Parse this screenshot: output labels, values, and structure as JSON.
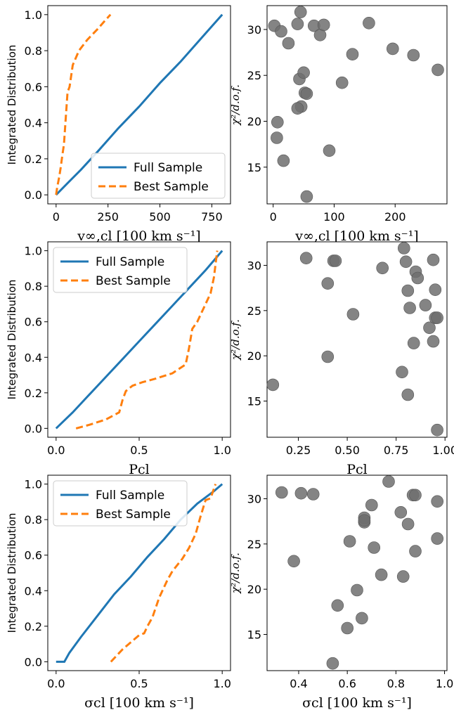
{
  "colors": {
    "full": "#1f77b4",
    "best": "#ff7f0e",
    "scatter": "#6e6e6e"
  },
  "chart_data": [
    {
      "type": "line",
      "xlabel": "v∞,cl [100 km s⁻¹]",
      "ylabel": "Integrated Distribution",
      "xlim": [
        -40,
        840
      ],
      "ylim": [
        -0.05,
        1.05
      ],
      "xticks": [
        0,
        250,
        500,
        750
      ],
      "yticks": [
        0.0,
        0.2,
        0.4,
        0.6,
        0.8,
        1.0
      ],
      "legend": "lower-right",
      "series": [
        {
          "name": "Full Sample",
          "style": "solid",
          "x": [
            0,
            60,
            120,
            200,
            300,
            400,
            500,
            600,
            700,
            800
          ],
          "y": [
            0,
            0.07,
            0.14,
            0.24,
            0.37,
            0.49,
            0.62,
            0.74,
            0.87,
            1.0
          ]
        },
        {
          "name": "Best Sample",
          "style": "dashed",
          "x": [
            0,
            5,
            15,
            22,
            30,
            38,
            45,
            55,
            65,
            80,
            110,
            150,
            200,
            230,
            262
          ],
          "y": [
            0,
            0.04,
            0.1,
            0.15,
            0.22,
            0.28,
            0.4,
            0.57,
            0.6,
            0.72,
            0.8,
            0.86,
            0.92,
            0.96,
            1.0
          ]
        }
      ]
    },
    {
      "type": "scatter",
      "xlabel": "v∞,cl [100 km s⁻¹]",
      "ylabel": "χ²/d.o.f.",
      "xlim": [
        -10,
        285
      ],
      "ylim": [
        11,
        32.6
      ],
      "xticks": [
        0,
        100,
        200
      ],
      "yticks": [
        15,
        20,
        25,
        30
      ],
      "points": {
        "x": [
          2,
          13,
          25,
          40,
          45,
          67,
          77,
          83,
          157,
          7,
          6,
          17,
          43,
          46,
          50,
          52,
          55,
          40,
          113,
          130,
          196,
          230,
          270,
          92,
          55
        ],
        "y": [
          30.4,
          29.8,
          28.5,
          30.6,
          31.9,
          30.4,
          29.4,
          30.5,
          30.7,
          19.9,
          18.2,
          15.7,
          24.6,
          21.6,
          25.3,
          23.1,
          11.8,
          21.4,
          24.2,
          27.3,
          27.9,
          27.2,
          25.6,
          16.8,
          23.0
        ]
      }
    },
    {
      "type": "line",
      "xlabel": "Pcl",
      "ylabel": "Integrated Distribution",
      "xlim": [
        -0.05,
        1.05
      ],
      "ylim": [
        -0.05,
        1.05
      ],
      "xticks": [
        0.0,
        0.5,
        1.0
      ],
      "yticks": [
        0.0,
        0.2,
        0.4,
        0.6,
        0.8,
        1.0
      ],
      "legend": "upper-left",
      "series": [
        {
          "name": "Full Sample",
          "style": "solid",
          "x": [
            0,
            0.1,
            0.2,
            0.3,
            0.4,
            0.5,
            0.6,
            0.7,
            0.8,
            0.9,
            1.0
          ],
          "y": [
            0,
            0.09,
            0.19,
            0.29,
            0.39,
            0.49,
            0.59,
            0.69,
            0.79,
            0.89,
            1.0
          ]
        },
        {
          "name": "Best Sample",
          "style": "dashed",
          "x": [
            0.12,
            0.2,
            0.3,
            0.38,
            0.4,
            0.42,
            0.46,
            0.52,
            0.6,
            0.7,
            0.78,
            0.8,
            0.82,
            0.85,
            0.9,
            0.93,
            0.95,
            0.97
          ],
          "y": [
            0.0,
            0.02,
            0.05,
            0.09,
            0.16,
            0.21,
            0.24,
            0.26,
            0.28,
            0.31,
            0.36,
            0.45,
            0.56,
            0.6,
            0.7,
            0.76,
            0.85,
            1.0
          ]
        }
      ]
    },
    {
      "type": "scatter",
      "xlabel": "Pcl",
      "ylabel": "χ²/d.o.f.",
      "xlim": [
        0.09,
        1.01
      ],
      "ylim": [
        11,
        32.6
      ],
      "xticks": [
        0.25,
        0.5,
        0.75,
        1.0
      ],
      "yticks": [
        15,
        20,
        25,
        30
      ],
      "points": {
        "x": [
          0.12,
          0.29,
          0.4,
          0.4,
          0.43,
          0.44,
          0.53,
          0.68,
          0.79,
          0.8,
          0.81,
          0.85,
          0.86,
          0.9,
          0.94,
          0.95,
          0.95,
          0.78,
          0.81,
          0.82,
          0.84,
          0.92,
          0.94,
          0.96,
          0.96
        ],
        "y": [
          16.8,
          30.8,
          28.0,
          19.9,
          30.5,
          30.5,
          24.6,
          29.7,
          31.9,
          30.4,
          27.2,
          29.3,
          28.6,
          25.6,
          30.6,
          27.3,
          24.2,
          18.2,
          15.7,
          25.3,
          21.4,
          23.1,
          21.6,
          11.8,
          24.2
        ]
      }
    },
    {
      "type": "line",
      "xlabel": "σcl [100 km s⁻¹]",
      "ylabel": "Integrated Distribution",
      "xlim": [
        -0.05,
        1.05
      ],
      "ylim": [
        -0.05,
        1.05
      ],
      "xticks": [
        0.0,
        0.5,
        1.0
      ],
      "yticks": [
        0.0,
        0.2,
        0.4,
        0.6,
        0.8,
        1.0
      ],
      "legend": "upper-left",
      "series": [
        {
          "name": "Full Sample",
          "style": "solid",
          "x": [
            0,
            0.05,
            0.08,
            0.15,
            0.25,
            0.35,
            0.45,
            0.55,
            0.65,
            0.75,
            0.85,
            0.95,
            1.0
          ],
          "y": [
            0,
            0.0,
            0.05,
            0.14,
            0.26,
            0.38,
            0.48,
            0.59,
            0.69,
            0.8,
            0.89,
            0.96,
            1.0
          ]
        },
        {
          "name": "Best Sample",
          "style": "dashed",
          "x": [
            0.33,
            0.36,
            0.4,
            0.45,
            0.5,
            0.53,
            0.55,
            0.58,
            0.62,
            0.67,
            0.7,
            0.76,
            0.8,
            0.84,
            0.87,
            0.9,
            0.93,
            0.96
          ],
          "y": [
            0.0,
            0.03,
            0.07,
            0.11,
            0.15,
            0.16,
            0.2,
            0.25,
            0.36,
            0.46,
            0.51,
            0.58,
            0.64,
            0.72,
            0.82,
            0.91,
            0.92,
            1.0
          ]
        }
      ]
    },
    {
      "type": "scatter",
      "xlabel": "σcl [100 km s⁻¹]",
      "ylabel": "χ²/d.o.f.",
      "xlim": [
        0.27,
        1.01
      ],
      "ylim": [
        11,
        32.6
      ],
      "xticks": [
        0.4,
        0.6,
        0.8,
        1.0
      ],
      "yticks": [
        15,
        20,
        25,
        30
      ],
      "points": {
        "x": [
          0.33,
          0.41,
          0.46,
          0.38,
          0.54,
          0.56,
          0.6,
          0.61,
          0.64,
          0.66,
          0.67,
          0.67,
          0.7,
          0.71,
          0.74,
          0.77,
          0.82,
          0.83,
          0.85,
          0.87,
          0.88,
          0.88,
          0.97,
          0.97,
          0.67
        ],
        "y": [
          30.7,
          30.6,
          30.5,
          23.1,
          11.8,
          18.2,
          15.7,
          25.3,
          19.9,
          16.8,
          27.4,
          27.9,
          29.3,
          24.6,
          21.6,
          31.9,
          28.5,
          21.4,
          27.2,
          30.4,
          30.4,
          24.2,
          29.7,
          25.6,
          27.6
        ]
      }
    }
  ]
}
